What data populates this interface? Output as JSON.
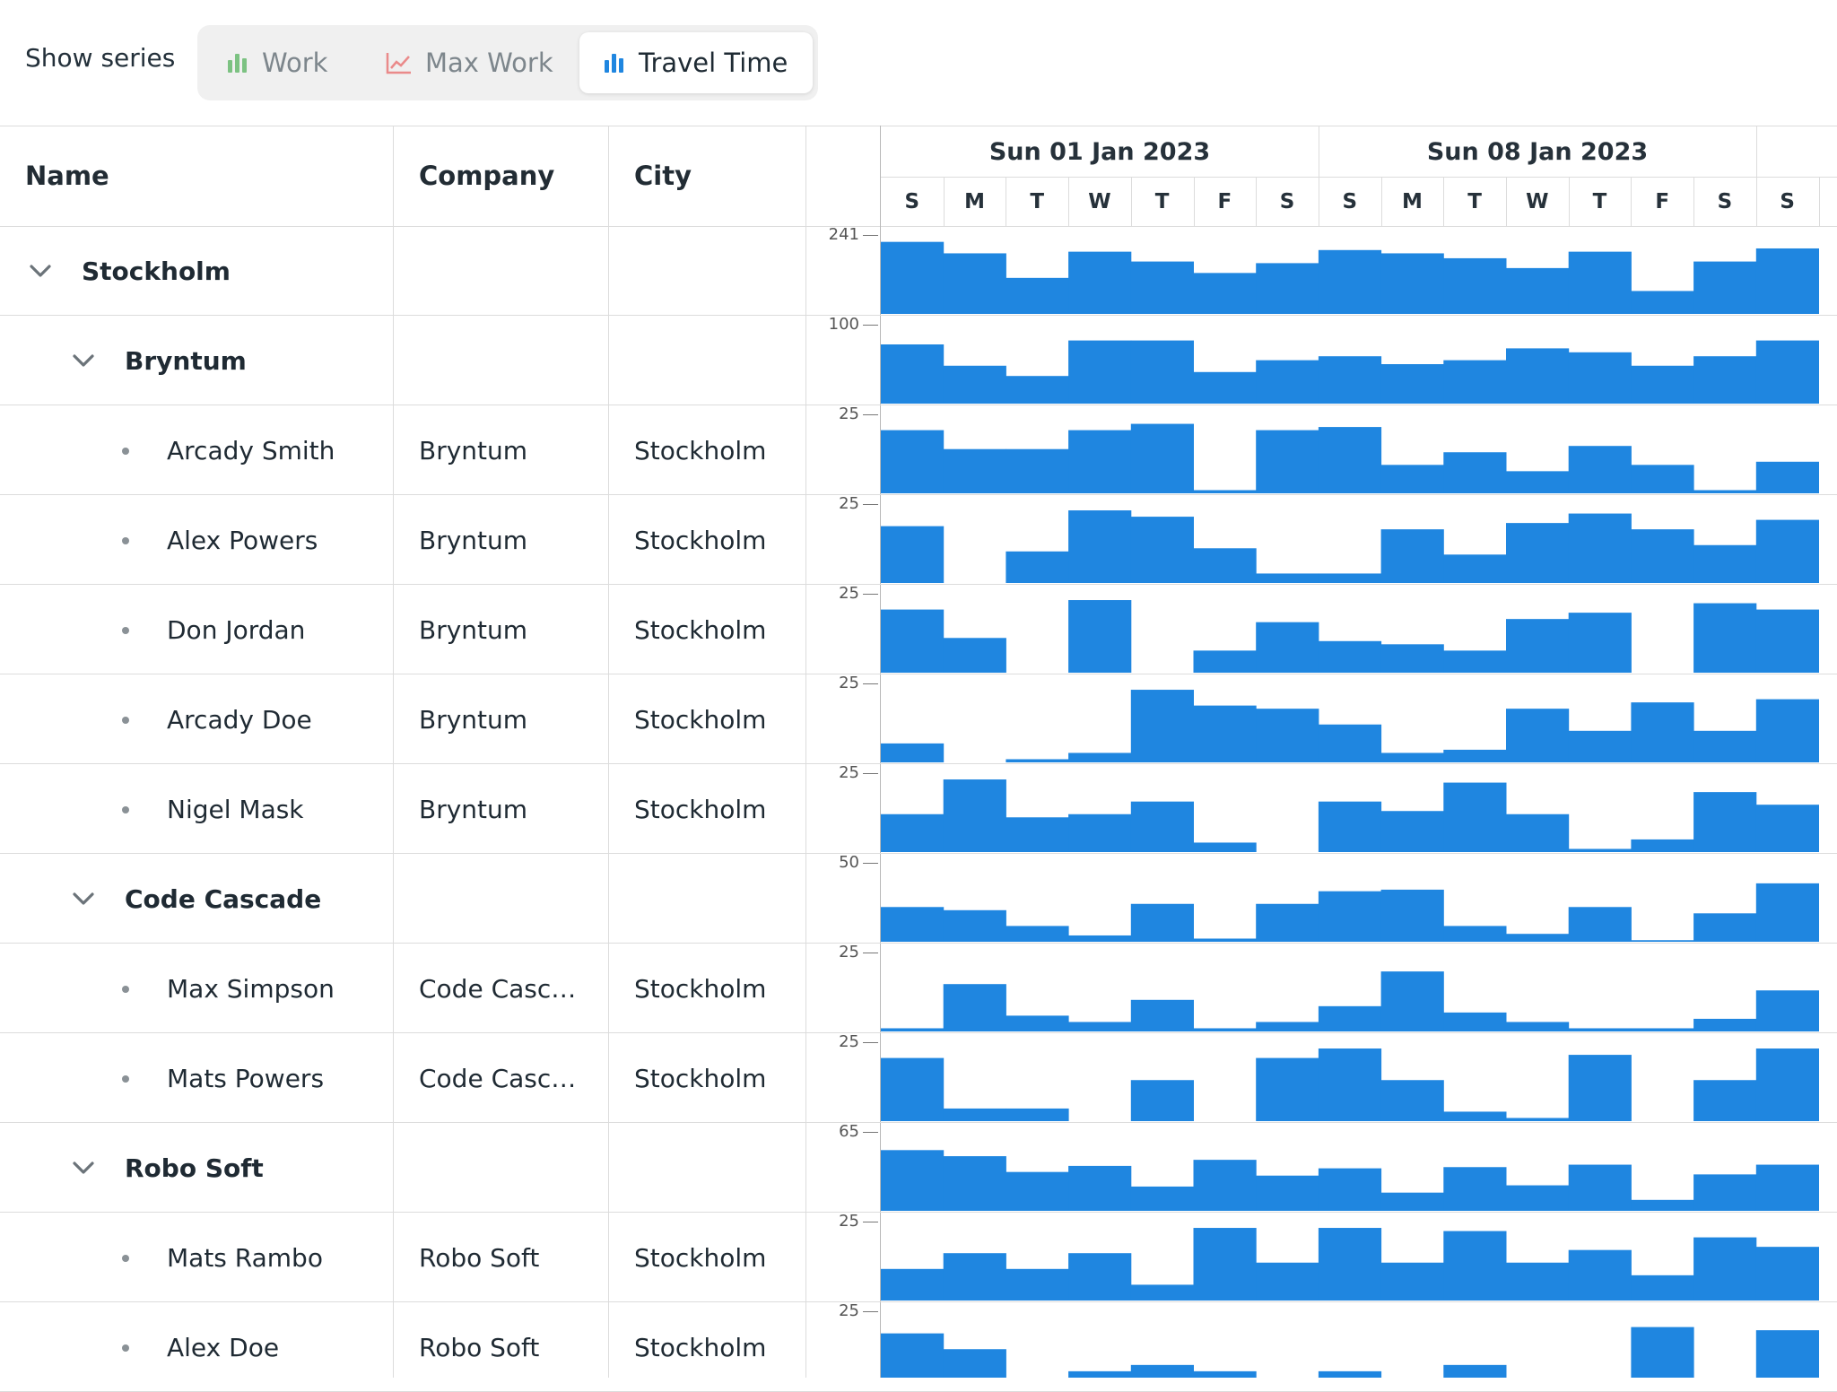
{
  "toolbar": {
    "show_series_label": "Show series",
    "series_buttons": [
      {
        "label": "Work",
        "icon": "bar-chart-icon",
        "color": "#7cc282",
        "active": false
      },
      {
        "label": "Max Work",
        "icon": "line-chart-icon",
        "color": "#ea8a8a",
        "active": false
      },
      {
        "label": "Travel Time",
        "icon": "bar-chart-icon",
        "color": "#1f86e0",
        "active": true
      }
    ]
  },
  "grid": {
    "columns": [
      "Name",
      "Company",
      "City"
    ],
    "rows": [
      {
        "type": "group",
        "level": 0,
        "name": "Stockholm",
        "company": "",
        "city": ""
      },
      {
        "type": "group",
        "level": 1,
        "name": "Bryntum",
        "company": "",
        "city": ""
      },
      {
        "type": "leaf",
        "name": "Arcady Smith",
        "company": "Bryntum",
        "city": "Stockholm"
      },
      {
        "type": "leaf",
        "name": "Alex Powers",
        "company": "Bryntum",
        "city": "Stockholm"
      },
      {
        "type": "leaf",
        "name": "Don Jordan",
        "company": "Bryntum",
        "city": "Stockholm"
      },
      {
        "type": "leaf",
        "name": "Arcady Doe",
        "company": "Bryntum",
        "city": "Stockholm"
      },
      {
        "type": "leaf",
        "name": "Nigel Mask",
        "company": "Bryntum",
        "city": "Stockholm"
      },
      {
        "type": "group",
        "level": 1,
        "name": "Code Cascade",
        "company": "",
        "city": ""
      },
      {
        "type": "leaf",
        "name": "Max Simpson",
        "company": "Code Casc…",
        "city": "Stockholm"
      },
      {
        "type": "leaf",
        "name": "Mats Powers",
        "company": "Code Casc…",
        "city": "Stockholm"
      },
      {
        "type": "group",
        "level": 1,
        "name": "Robo Soft",
        "company": "",
        "city": ""
      },
      {
        "type": "leaf",
        "name": "Mats Rambo",
        "company": "Robo Soft",
        "city": "Stockholm"
      },
      {
        "type": "leaf",
        "name": "Alex Doe",
        "company": "Robo Soft",
        "city": "Stockholm"
      }
    ]
  },
  "timeline": {
    "weeks": [
      "Sun 01 Jan 2023",
      "Sun 08 Jan 2023"
    ],
    "days": [
      "S",
      "M",
      "T",
      "W",
      "T",
      "F",
      "S",
      "S",
      "M",
      "T",
      "W",
      "T",
      "F",
      "S",
      "S"
    ]
  },
  "chart_data": {
    "type": "bar",
    "series_name": "Travel Time",
    "color": "#1f86e0",
    "categories": [
      "S",
      "M",
      "T",
      "W",
      "T",
      "F",
      "S",
      "S",
      "M",
      "T",
      "W",
      "T",
      "F",
      "S",
      "S"
    ],
    "rows": [
      {
        "row": "Stockholm",
        "ymax": 241,
        "values": [
          220,
          185,
          110,
          190,
          160,
          125,
          155,
          195,
          185,
          170,
          140,
          190,
          70,
          160,
          200
        ]
      },
      {
        "row": "Bryntum",
        "ymax": 100,
        "values": [
          75,
          48,
          35,
          80,
          80,
          40,
          55,
          60,
          50,
          55,
          70,
          65,
          48,
          60,
          80
        ]
      },
      {
        "row": "Arcady Smith",
        "ymax": 25,
        "values": [
          20,
          14,
          14,
          20,
          22,
          1,
          20,
          21,
          9,
          13,
          7,
          15,
          9,
          1,
          10
        ]
      },
      {
        "row": "Alex Powers",
        "ymax": 25,
        "values": [
          18,
          0,
          10,
          23,
          21,
          11,
          3,
          3,
          17,
          9,
          19,
          22,
          17,
          12,
          20
        ]
      },
      {
        "row": "Don Jordan",
        "ymax": 25,
        "values": [
          20,
          11,
          0,
          23,
          0,
          7,
          16,
          10,
          9,
          7,
          17,
          19,
          0,
          22,
          20
        ]
      },
      {
        "row": "Arcady Doe",
        "ymax": 25,
        "values": [
          6,
          0,
          1,
          3,
          23,
          18,
          17,
          12,
          3,
          4,
          17,
          10,
          19,
          10,
          20
        ]
      },
      {
        "row": "Nigel Mask",
        "ymax": 25,
        "values": [
          12,
          23,
          11,
          12,
          16,
          3,
          0,
          16,
          13,
          22,
          12,
          1,
          4,
          19,
          15
        ]
      },
      {
        "row": "Code Cascade",
        "ymax": 50,
        "values": [
          22,
          20,
          10,
          4,
          24,
          2,
          24,
          32,
          33,
          10,
          5,
          22,
          1,
          18,
          37
        ]
      },
      {
        "row": "Max Simpson",
        "ymax": 25,
        "values": [
          1,
          15,
          5,
          3,
          10,
          1,
          3,
          8,
          19,
          6,
          3,
          1,
          1,
          4,
          13
        ]
      },
      {
        "row": "Mats Powers",
        "ymax": 25,
        "values": [
          20,
          4,
          4,
          0,
          13,
          0,
          20,
          23,
          13,
          3,
          1,
          21,
          0,
          13,
          23
        ]
      },
      {
        "row": "Robo Soft",
        "ymax": 65,
        "values": [
          50,
          45,
          32,
          37,
          20,
          42,
          29,
          35,
          15,
          36,
          21,
          38,
          9,
          30,
          38
        ]
      },
      {
        "row": "Mats Rambo",
        "ymax": 25,
        "values": [
          10,
          15,
          10,
          15,
          5,
          23,
          12,
          23,
          12,
          22,
          12,
          16,
          8,
          20,
          17
        ]
      },
      {
        "row": "Alex Doe",
        "ymax": 25,
        "values": [
          18,
          13,
          2,
          6,
          8,
          6,
          0,
          6,
          0,
          8,
          0,
          0,
          20,
          0,
          19
        ]
      }
    ]
  }
}
